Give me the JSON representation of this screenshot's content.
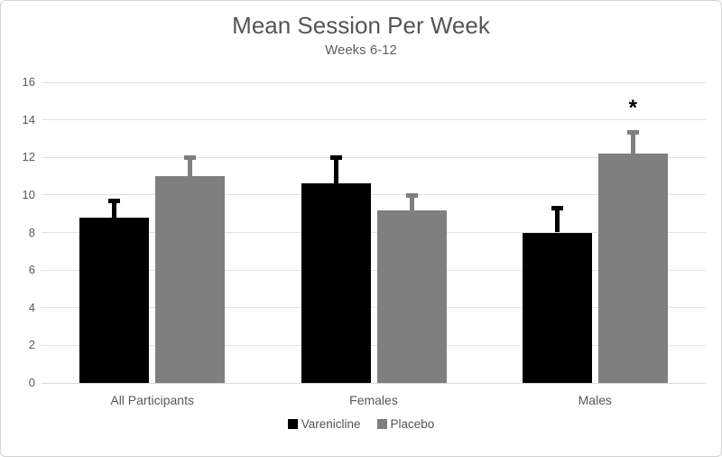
{
  "chart_data": {
    "type": "bar",
    "title": "Mean Session Per Week",
    "subtitle": "Weeks 6-12",
    "categories": [
      "All Participants",
      "Females",
      "Males"
    ],
    "series": [
      {
        "name": "Varenicline",
        "color": "#000000",
        "values": [
          8.8,
          10.6,
          8.0
        ],
        "error_up": [
          1.0,
          1.5,
          1.4
        ]
      },
      {
        "name": "Placebo",
        "color": "#7f7f7f",
        "values": [
          11.0,
          9.2,
          12.2
        ],
        "error_up": [
          1.1,
          0.9,
          1.25
        ]
      }
    ],
    "annotations": [
      {
        "text": "*",
        "category": "Males",
        "series": "Placebo"
      }
    ],
    "ylim": [
      0,
      16
    ],
    "ytick_step": 2,
    "yticks": [
      0,
      2,
      4,
      6,
      8,
      10,
      12,
      14,
      16
    ],
    "grid": true,
    "legend_position": "bottom"
  }
}
